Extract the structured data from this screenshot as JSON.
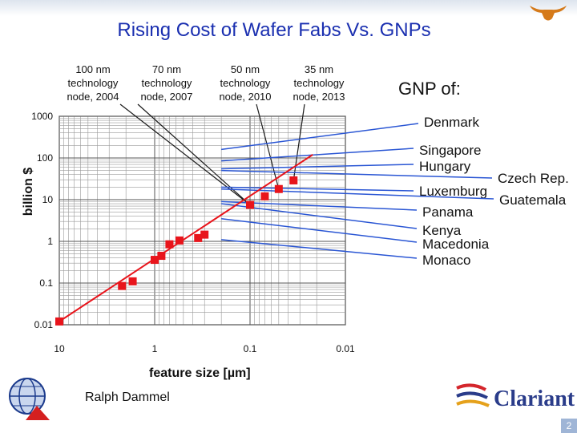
{
  "slide": {
    "title": "Rising Cost of Wafer Fabs Vs. GNPs",
    "author": "Ralph Dammel",
    "gnp_title": "GNP of:",
    "logo_text": "Clariant",
    "page_number": "2",
    "accent_color": "#1a2fb0",
    "line_color": "#1a1a1a"
  },
  "nodes": [
    {
      "label": "100 nm technology node, 2004"
    },
    {
      "label": "70 nm technology node, 2007"
    },
    {
      "label": "50 nm technology node, 2010"
    },
    {
      "label": "35 nm technology node, 2013"
    }
  ],
  "countries": [
    "Denmark",
    "Singapore",
    "Hungary",
    "Czech Rep.",
    "Luxemburg",
    "Guatemala",
    "Panama",
    "Kenya",
    "Macedonia",
    "Monaco"
  ],
  "chart_data": {
    "type": "scatter",
    "title": "Rising Cost of Wafer Fabs Vs. GNPs",
    "xlabel": "feature size [µm]",
    "ylabel": "billion $",
    "x_scale": "log",
    "y_scale": "log",
    "x_reversed": true,
    "xlim": [
      10,
      0.01
    ],
    "ylim": [
      0.01,
      1000
    ],
    "x_ticks": [
      "10",
      "1",
      "0.1",
      "0.01"
    ],
    "y_ticks": [
      "1000",
      "100",
      "10",
      "1",
      "0.1",
      "0.01"
    ],
    "grid": true,
    "series": [
      {
        "color": "#e8141b",
        "points": [
          {
            "x": 10,
            "y": 0.012
          },
          {
            "x": 2.2,
            "y": 0.085
          },
          {
            "x": 1.7,
            "y": 0.11
          },
          {
            "x": 1.0,
            "y": 0.36
          },
          {
            "x": 0.85,
            "y": 0.45
          },
          {
            "x": 0.7,
            "y": 0.85
          },
          {
            "x": 0.55,
            "y": 1.05
          },
          {
            "x": 0.35,
            "y": 1.2
          },
          {
            "x": 0.3,
            "y": 1.45
          },
          {
            "x": 0.1,
            "y": 7.5
          },
          {
            "x": 0.07,
            "y": 12
          },
          {
            "x": 0.05,
            "y": 18
          },
          {
            "x": 0.035,
            "y": 29
          }
        ]
      }
    ],
    "trendline": {
      "color": "#e8141b",
      "from": {
        "x": 10,
        "y": 0.012
      },
      "to": {
        "x": 0.022,
        "y": 120
      }
    },
    "country_gnp_billion": [
      160,
      85,
      55,
      50,
      20,
      18,
      9,
      8,
      3.5,
      1.1
    ]
  }
}
